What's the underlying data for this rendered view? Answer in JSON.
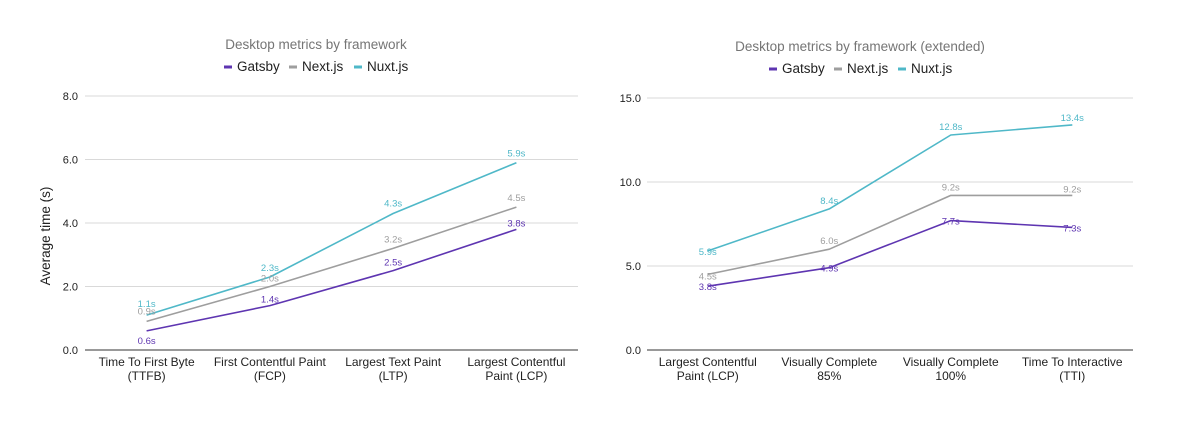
{
  "chart_data": [
    {
      "type": "line",
      "title": "Desktop metrics by framework",
      "ylabel": "Average time (s)",
      "xlabel": "",
      "ylim": [
        0,
        8
      ],
      "yticks": [
        "0.0",
        "2.0",
        "4.0",
        "6.0",
        "8.0"
      ],
      "grid": true,
      "legend": "top",
      "categories": [
        [
          "Time To First Byte",
          "(TTFB)"
        ],
        [
          "First Contentful Paint",
          "(FCP)"
        ],
        [
          "Largest Text Paint",
          "(LTP)"
        ],
        [
          "Largest Contentful",
          "Paint (LCP)"
        ]
      ],
      "series": [
        {
          "name": "Gatsby",
          "color": "#5e35b1",
          "values": [
            0.6,
            1.4,
            2.5,
            3.8
          ],
          "labels": [
            "0.6s",
            "1.4s",
            "2.5s",
            "3.8s"
          ]
        },
        {
          "name": "Next.js",
          "color": "#9e9e9e",
          "values": [
            0.9,
            2.0,
            3.2,
            4.5
          ],
          "labels": [
            "0.9s",
            "2.0s",
            "3.2s",
            "4.5s"
          ]
        },
        {
          "name": "Nuxt.js",
          "color": "#4fb8c8",
          "values": [
            1.1,
            2.3,
            4.3,
            5.9
          ],
          "labels": [
            "1.1s",
            "2.3s",
            "4.3s",
            "5.9s"
          ]
        }
      ]
    },
    {
      "type": "line",
      "title": "Desktop metrics by framework (extended)",
      "ylabel": "",
      "xlabel": "",
      "ylim": [
        0,
        15
      ],
      "yticks": [
        "0.0",
        "5.0",
        "10.0",
        "15.0"
      ],
      "grid": true,
      "legend": "top",
      "categories": [
        [
          "Largest Contentful",
          "Paint (LCP)"
        ],
        [
          "Visually Complete",
          "85%"
        ],
        [
          "Visually Complete",
          "100%"
        ],
        [
          "Time To Interactive",
          "(TTI)"
        ]
      ],
      "series": [
        {
          "name": "Gatsby",
          "color": "#5e35b1",
          "values": [
            3.8,
            4.9,
            7.7,
            7.3
          ],
          "labels": [
            "3.8s",
            "4.9s",
            "7.7s",
            "7.3s"
          ]
        },
        {
          "name": "Next.js",
          "color": "#9e9e9e",
          "values": [
            4.5,
            6.0,
            9.2,
            9.2
          ],
          "labels": [
            "4.5s",
            "6.0s",
            "9.2s",
            "9.2s"
          ]
        },
        {
          "name": "Nuxt.js",
          "color": "#4fb8c8",
          "values": [
            5.9,
            8.4,
            12.8,
            13.4
          ],
          "labels": [
            "5.9s",
            "8.4s",
            "12.8s",
            "13.4s"
          ]
        }
      ]
    }
  ]
}
